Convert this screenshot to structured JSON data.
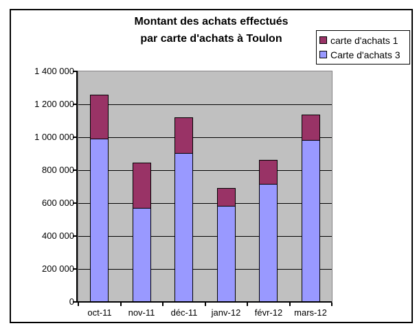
{
  "window": {
    "background": "#ffffff",
    "frame_border_color": "#000000"
  },
  "title": {
    "line1": "Montant des achats effectués",
    "line2": "par carte d'achats à Toulon"
  },
  "legend": {
    "position": "top-right",
    "border_color": "#000000",
    "items": [
      {
        "label": "carte d'achats 1",
        "color": "#993366"
      },
      {
        "label": "Carte d'achats 3",
        "color": "#9999FF"
      }
    ]
  },
  "chart_data": {
    "type": "bar",
    "stacked": true,
    "title": "Montant des achats effectués par carte d'achats à Toulon",
    "categories": [
      "oct-11",
      "nov-11",
      "déc-11",
      "janv-12",
      "févr-12",
      "mars-12"
    ],
    "series": [
      {
        "name": "Carte d'achats 3",
        "color": "#9999FF",
        "stack_position": "bottom",
        "values": [
          990000,
          570000,
          905000,
          585000,
          715000,
          985000
        ]
      },
      {
        "name": "carte d'achats 1",
        "color": "#993366",
        "stack_position": "top",
        "values": [
          265000,
          275000,
          215000,
          110000,
          145000,
          155000
        ]
      }
    ],
    "stack_totals": [
      1255000,
      845000,
      1120000,
      695000,
      860000,
      1140000
    ],
    "xlabel": "",
    "ylabel": "",
    "ylim": [
      0,
      1400000
    ],
    "ytick_step": 200000,
    "ytick_labels": [
      "0",
      "200 000",
      "400 000",
      "600 000",
      "800 000",
      "1 000 000",
      "1 200 000",
      "1 400 000"
    ],
    "grid": true,
    "gridline_color": "#000000",
    "plot_background": "#C0C0C0",
    "plot_border_color": "#848284",
    "bar_border_color": "#000000",
    "legend_position": "top-right"
  }
}
